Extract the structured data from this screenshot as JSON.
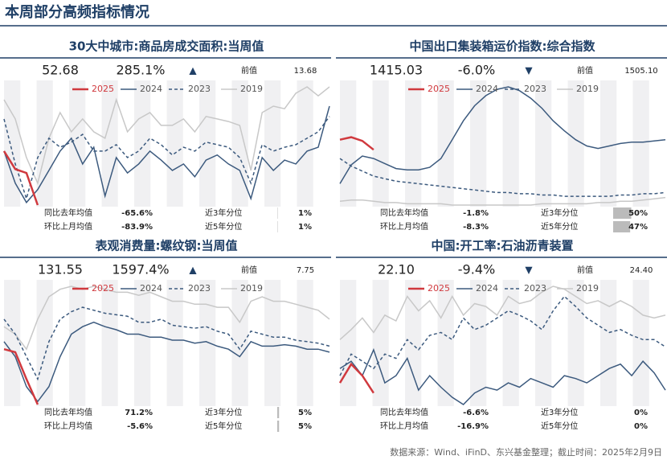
{
  "title": "本周部分高频指标情况",
  "footer": "数据来源：Wind、iFinD、东兴基金整理；截止时间：2025年2月9日",
  "chart_data": [
    {
      "type": "line",
      "title": "30大中城市:商品房成交面积:当周值",
      "latest": "52.68",
      "change": "285.1%",
      "arrow": "▲",
      "prev_label": "前值",
      "prev": "13.68",
      "series": [
        {
          "name": "2025",
          "color": "#d0393e",
          "dashed": false,
          "values": [
            45,
            31,
            28,
            3
          ]
        },
        {
          "name": "2024",
          "color": "#3c5a7e",
          "dashed": false,
          "values": [
            45,
            20,
            5,
            15,
            30,
            45,
            55,
            35,
            48,
            10,
            40,
            28,
            35,
            45,
            38,
            30,
            35,
            25,
            38,
            42,
            35,
            30,
            8,
            40,
            30,
            38,
            35,
            45,
            48,
            80
          ]
        },
        {
          "name": "2023",
          "color": "#3c5a7e",
          "dashed": true,
          "values": [
            70,
            35,
            8,
            40,
            55,
            48,
            52,
            58,
            45,
            45,
            50,
            40,
            45,
            55,
            50,
            42,
            48,
            45,
            52,
            50,
            48,
            40,
            20,
            50,
            45,
            48,
            50,
            55,
            60,
            72
          ]
        },
        {
          "name": "2019",
          "color": "#c8c8c8",
          "dashed": false,
          "values": [
            85,
            70,
            40,
            20,
            55,
            75,
            60,
            70,
            60,
            55,
            85,
            60,
            70,
            75,
            65,
            65,
            70,
            60,
            72,
            70,
            68,
            65,
            30,
            75,
            80,
            78,
            90,
            95,
            88,
            95
          ]
        }
      ],
      "stats": [
        [
          "同比去年均值",
          "-65.6%"
        ],
        [
          "环比上月均值",
          "-83.9%"
        ]
      ],
      "percentiles": {
        "labels": [
          "近3年分位",
          "近5年分位"
        ],
        "values": [
          1,
          1
        ],
        "value_labels": [
          "1%",
          "1%"
        ],
        "xlim": [
          0,
          100
        ]
      }
    },
    {
      "type": "line",
      "title": "中国出口集装箱运价指数:综合指数",
      "latest": "1415.03",
      "change": "-6.0%",
      "arrow": "▼",
      "prev_label": "前值",
      "prev": "1505.10",
      "series": [
        {
          "name": "2025",
          "color": "#d0393e",
          "dashed": false,
          "values": [
            55,
            57,
            54,
            47
          ]
        },
        {
          "name": "2024",
          "color": "#3c5a7e",
          "dashed": false,
          "values": [
            20,
            35,
            42,
            40,
            36,
            32,
            31,
            31,
            33,
            40,
            55,
            70,
            82,
            90,
            95,
            97,
            94,
            88,
            80,
            70,
            62,
            55,
            50,
            48,
            50,
            52,
            53,
            53,
            54,
            55
          ]
        },
        {
          "name": "2023",
          "color": "#3c5a7e",
          "dashed": true,
          "values": [
            40,
            34,
            30,
            26,
            24,
            22,
            21,
            20,
            19,
            18,
            17,
            16,
            15,
            14,
            13,
            13,
            12,
            12,
            11,
            11,
            10,
            10,
            10,
            10,
            10,
            11,
            11,
            12,
            12,
            13
          ]
        },
        {
          "name": "2019",
          "color": "#c8c8c8",
          "dashed": false,
          "values": [
            6,
            7,
            7,
            6,
            5,
            5,
            4,
            4,
            4,
            4,
            3,
            3,
            3,
            3,
            3,
            3,
            3,
            3,
            4,
            4,
            4,
            4,
            4,
            5,
            5,
            6,
            6,
            7,
            8,
            9
          ]
        }
      ],
      "stats": [
        [
          "同比去年均值",
          "-1.8%"
        ],
        [
          "环比上月均值",
          "-8.3%"
        ]
      ],
      "percentiles": {
        "labels": [
          "近3年分位",
          "近5年分位"
        ],
        "values": [
          50,
          47
        ],
        "value_labels": [
          "50%",
          "47%"
        ],
        "xlim": [
          0,
          100
        ]
      }
    },
    {
      "type": "line",
      "title": "表观消费量:螺纹钢:当周值",
      "latest": "131.55",
      "change": "1597.4%",
      "arrow": "▲",
      "prev_label": "前值",
      "prev": "7.75",
      "series": [
        {
          "name": "2025",
          "color": "#d0393e",
          "dashed": false,
          "values": [
            40,
            38,
            20,
            3
          ]
        },
        {
          "name": "2024",
          "color": "#3c5a7e",
          "dashed": false,
          "values": [
            45,
            35,
            15,
            5,
            15,
            35,
            50,
            55,
            58,
            55,
            53,
            50,
            50,
            48,
            48,
            46,
            46,
            44,
            45,
            42,
            40,
            35,
            45,
            42,
            42,
            43,
            42,
            40,
            40,
            38
          ]
        },
        {
          "name": "2023",
          "color": "#3c5a7e",
          "dashed": true,
          "values": [
            60,
            50,
            35,
            20,
            45,
            60,
            65,
            68,
            66,
            64,
            63,
            62,
            58,
            58,
            60,
            56,
            55,
            54,
            55,
            52,
            50,
            40,
            52,
            50,
            48,
            48,
            46,
            45,
            44,
            42
          ]
        },
        {
          "name": "2019",
          "color": "#c8c8c8",
          "dashed": false,
          "values": [
            55,
            50,
            40,
            60,
            75,
            80,
            82,
            80,
            82,
            80,
            78,
            78,
            76,
            78,
            75,
            72,
            72,
            70,
            70,
            68,
            68,
            58,
            72,
            75,
            72,
            72,
            70,
            68,
            66,
            60
          ]
        }
      ],
      "stats": [
        [
          "同比去年均值",
          "71.2%"
        ],
        [
          "环比上月均值",
          "-5.6%"
        ]
      ],
      "percentiles": {
        "labels": [
          "近3年分位",
          "近5年分位"
        ],
        "values": [
          5,
          5
        ],
        "value_labels": [
          "5%",
          "5%"
        ],
        "xlim": [
          0,
          100
        ]
      }
    },
    {
      "type": "line",
      "title": "中国:开工率:石油沥青装置",
      "latest": "22.10",
      "change": "-9.4%",
      "arrow": "▼",
      "prev_label": "前值",
      "prev": "24.40",
      "series": [
        {
          "name": "2025",
          "color": "#d0393e",
          "dashed": false,
          "values": [
            25,
            38,
            30,
            18
          ]
        },
        {
          "name": "2024",
          "color": "#3c5a7e",
          "dashed": false,
          "values": [
            35,
            40,
            30,
            48,
            25,
            30,
            42,
            20,
            30,
            22,
            15,
            10,
            18,
            22,
            20,
            25,
            22,
            28,
            25,
            22,
            30,
            28,
            25,
            30,
            35,
            38,
            30,
            40,
            32,
            20
          ]
        },
        {
          "name": "2023",
          "color": "#3c5a7e",
          "dashed": true,
          "values": [
            30,
            45,
            40,
            35,
            45,
            42,
            55,
            48,
            58,
            60,
            55,
            70,
            62,
            65,
            70,
            75,
            72,
            68,
            62,
            75,
            85,
            78,
            70,
            65,
            60,
            62,
            58,
            55,
            55,
            50
          ]
        },
        {
          "name": "2019",
          "color": "#c8c8c8",
          "dashed": false,
          "values": [
            55,
            62,
            70,
            60,
            72,
            68,
            85,
            75,
            82,
            70,
            85,
            72,
            80,
            78,
            72,
            85,
            80,
            82,
            88,
            92,
            90,
            85,
            80,
            82,
            78,
            82,
            78,
            72,
            70,
            72
          ]
        }
      ],
      "stats": [
        [
          "同比去年均值",
          "-6.6%"
        ],
        [
          "环比上月均值",
          "-16.9%"
        ]
      ],
      "percentiles": {
        "labels": [
          "近3年分位",
          "近5年分位"
        ],
        "values": [
          0,
          0
        ],
        "value_labels": [
          "0%",
          "0%"
        ],
        "xlim": [
          0,
          100
        ]
      }
    }
  ]
}
